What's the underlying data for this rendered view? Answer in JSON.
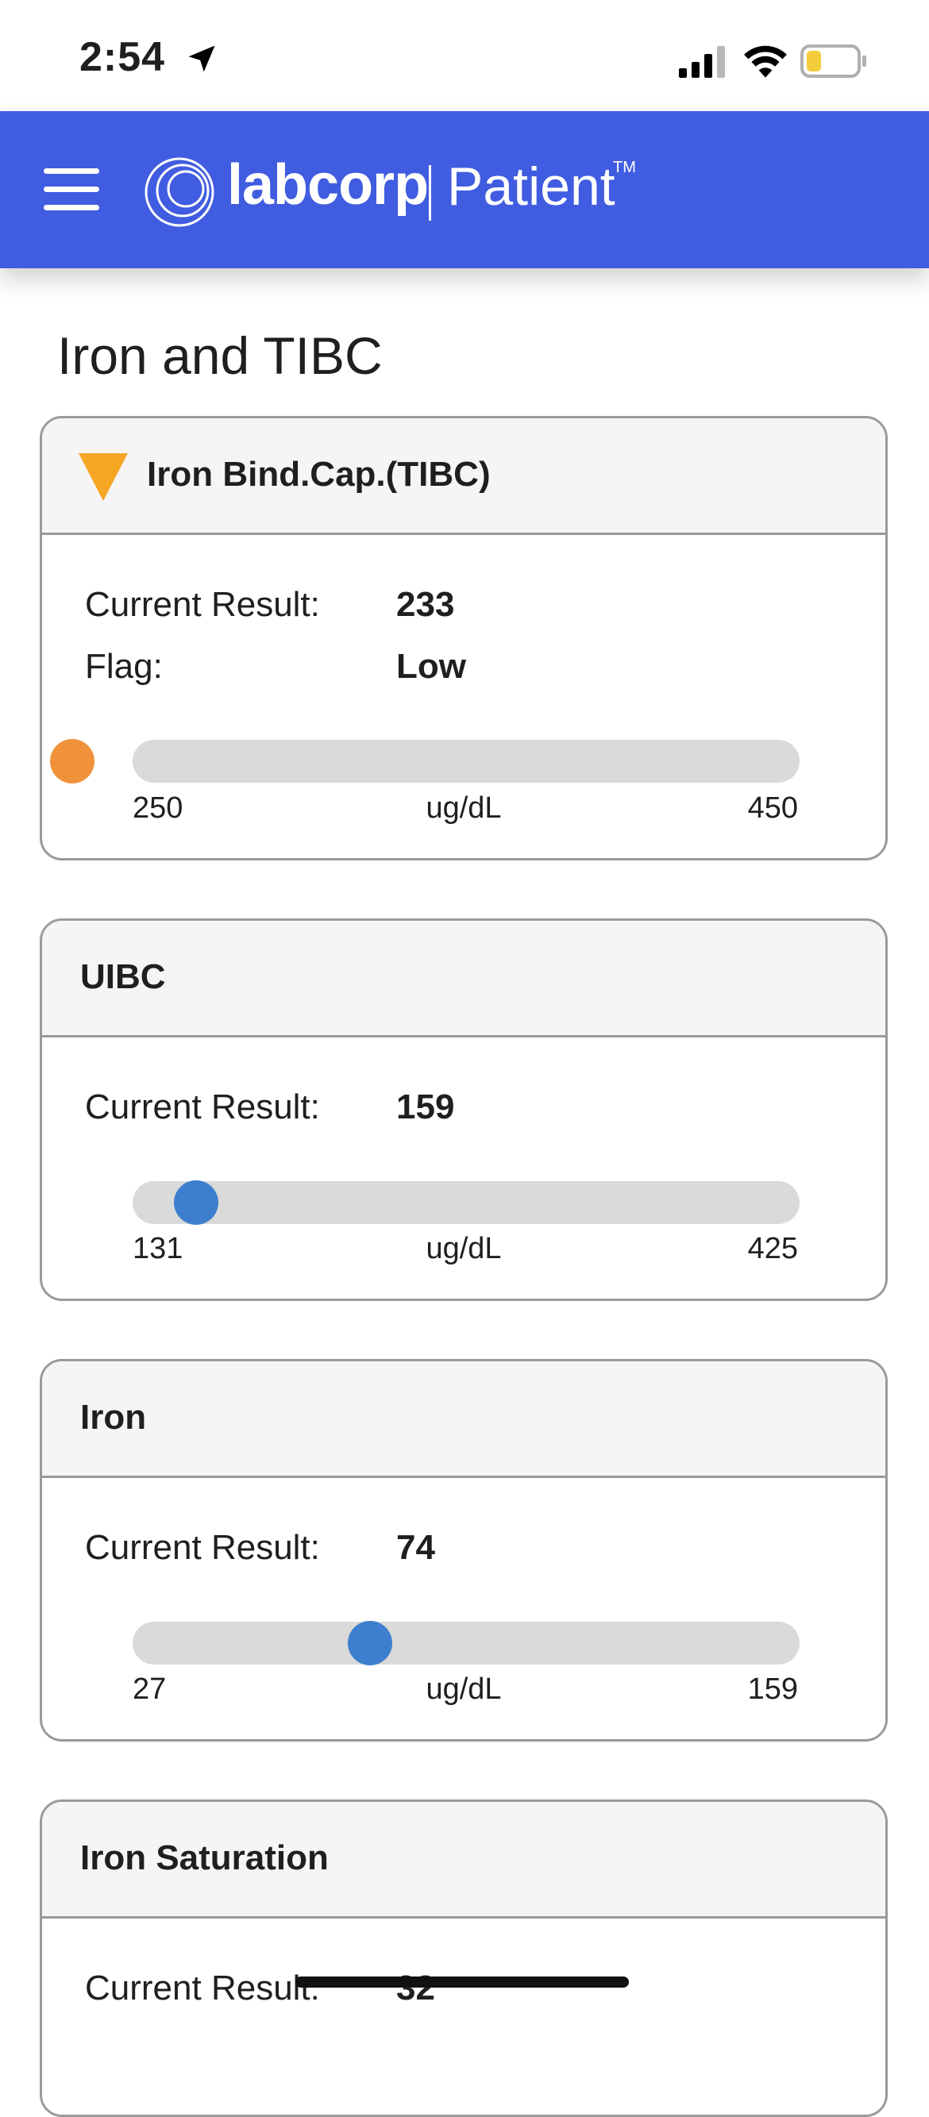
{
  "status_bar": {
    "time": "2:54",
    "battery_color": "#f3cd3c"
  },
  "header": {
    "brand": "labcorp",
    "product": "Patient",
    "trademark": "TM",
    "background": "#405ce0"
  },
  "page": {
    "title": "Iron and TIBC"
  },
  "tests": [
    {
      "name": "Iron Bind.Cap.(TIBC)",
      "flagged": true,
      "result_label": "Current Result:",
      "result_value": "233",
      "flag_label": "Flag:",
      "flag_value": "Low",
      "range_low": "250",
      "range_high": "450",
      "unit": "ug/dL",
      "marker_color": "#f0923a",
      "marker_position_fraction": -0.09
    },
    {
      "name": "UIBC",
      "flagged": false,
      "result_label": "Current Result:",
      "result_value": "159",
      "range_low": "131",
      "range_high": "425",
      "unit": "ug/dL",
      "marker_color": "#3d7fce",
      "marker_position_fraction": 0.095
    },
    {
      "name": "Iron",
      "flagged": false,
      "result_label": "Current Result:",
      "result_value": "74",
      "range_low": "27",
      "range_high": "159",
      "unit": "ug/dL",
      "marker_color": "#3d7fce",
      "marker_position_fraction": 0.356
    },
    {
      "name": "Iron Saturation",
      "flagged": false,
      "result_label": "Current Result:",
      "result_value": "32"
    }
  ],
  "colors": {
    "flag_low": "#f6a623",
    "track": "#dadada",
    "normal_marker": "#3d7fce",
    "abnormal_marker": "#f0923a"
  }
}
